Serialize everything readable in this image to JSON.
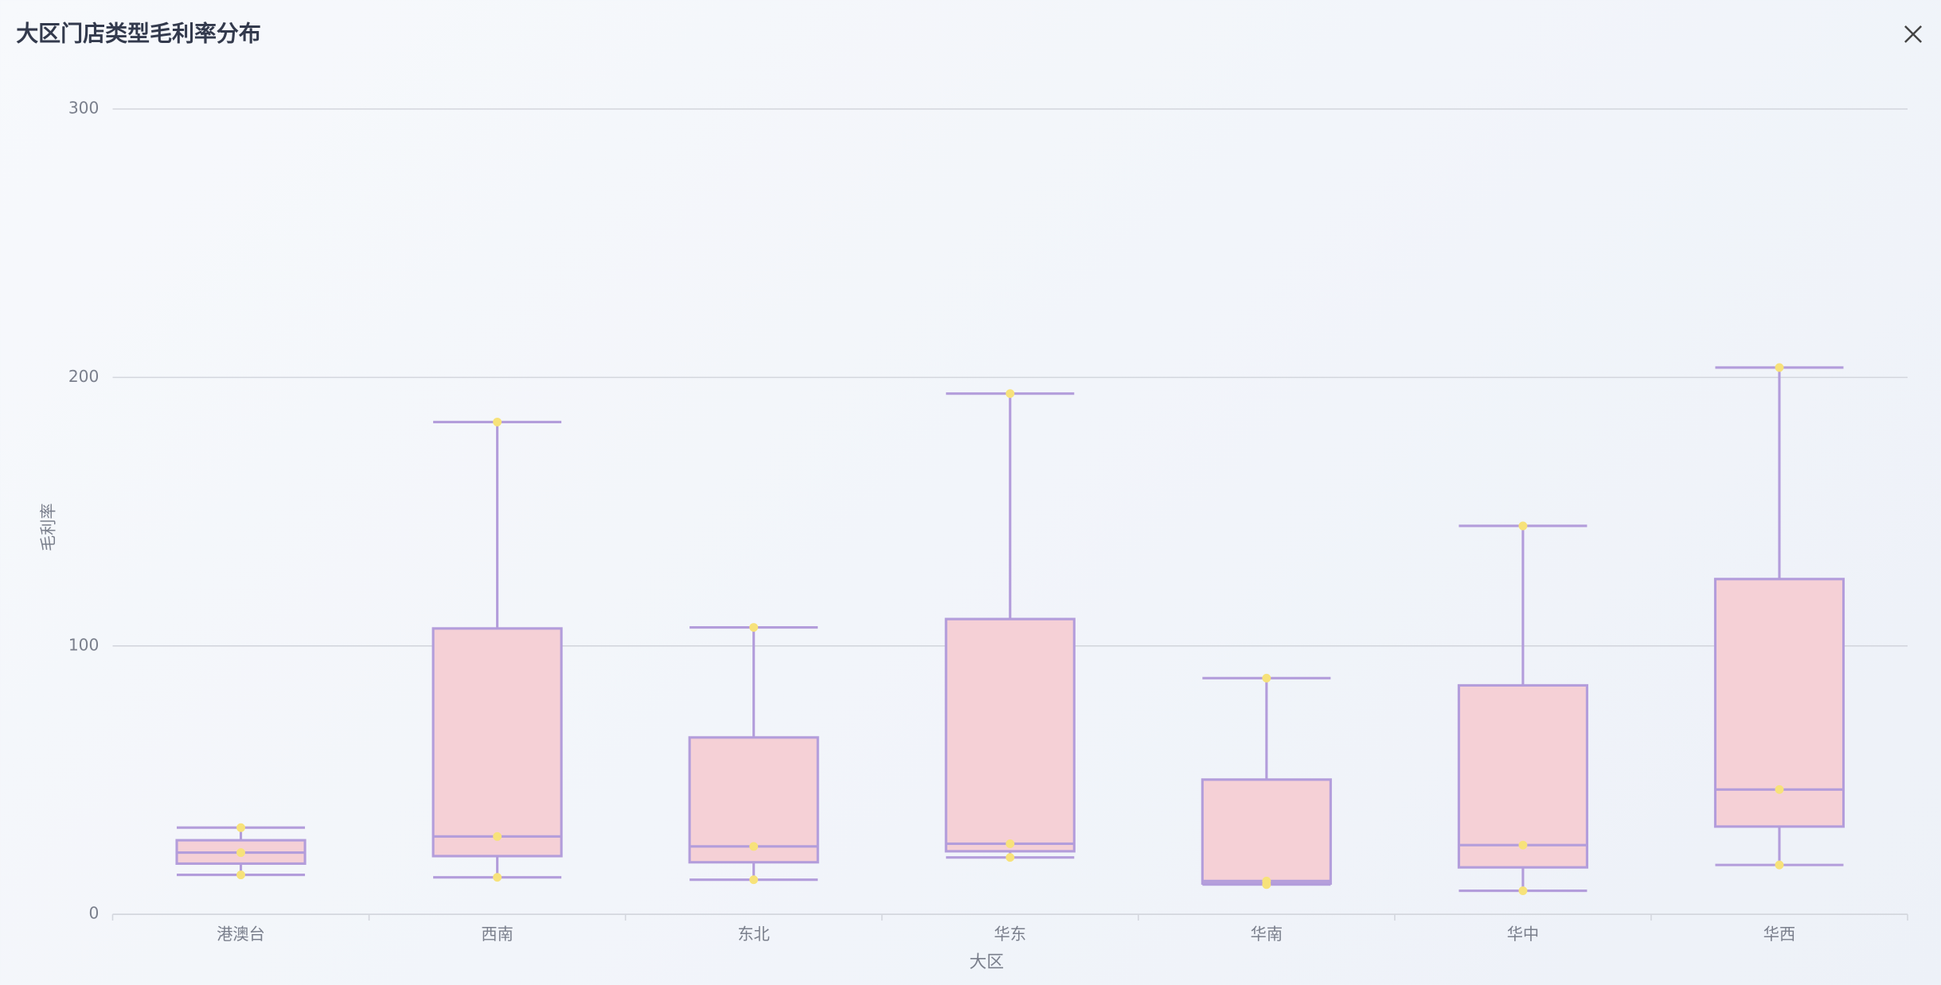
{
  "chart_data": {
    "type": "boxplot",
    "title": "大区门店类型毛利率分布",
    "x_label": "大区",
    "y_label": "毛利率",
    "categories": [
      "港澳台",
      "西南",
      "东北",
      "华东",
      "华南",
      "华中",
      "华西"
    ],
    "min": [
      14.7,
      13.8,
      12.9,
      21.2,
      11.1,
      8.8,
      18.4
    ],
    "q1": [
      18.9,
      21.7,
      19.4,
      23.5,
      11.5,
      17.5,
      32.7
    ],
    "median": [
      23.0,
      29.0,
      25.3,
      26.3,
      12.4,
      25.8,
      46.5
    ],
    "q3": [
      27.6,
      106.5,
      65.9,
      110.0,
      50.2,
      85.3,
      124.9
    ],
    "max": [
      32.3,
      183.4,
      106.9,
      194.0,
      88.0,
      144.7,
      203.7
    ],
    "box_color": "#f5d0d6",
    "line_color": "#b39ddb",
    "point_color": "#f7e27a",
    "ylim": [
      0,
      300
    ],
    "yticks": [
      0,
      100,
      200,
      300
    ],
    "grid": true
  }
}
